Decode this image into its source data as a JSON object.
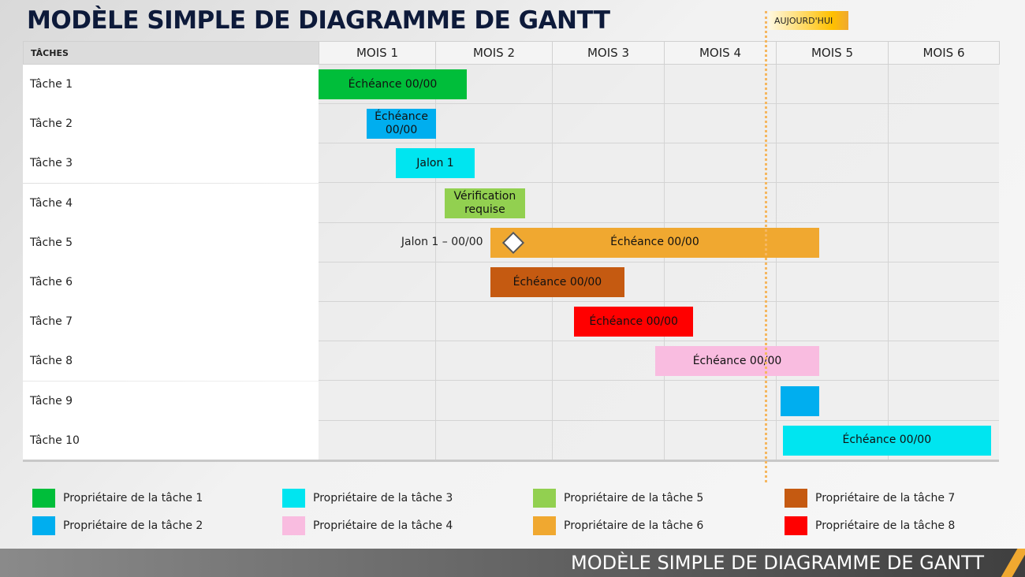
{
  "title": "MODÈLE SIMPLE DE DIAGRAMME DE GANTT",
  "footer_title": "MODÈLE SIMPLE DE DIAGRAMME DE GANTT",
  "chart_data": {
    "type": "gantt",
    "task_header": "TÂCHES",
    "months": [
      "MOIS 1",
      "MOIS 2",
      "MOIS 3",
      "MOIS 4",
      "MOIS 5",
      "MOIS 6"
    ],
    "today": {
      "label": "AUJOURD'HUI",
      "month": 3.91,
      "color": "#F5B760"
    },
    "tasks": [
      {
        "name": "Tâche 1",
        "start": 0,
        "end": 1.27,
        "label": "Échéance 00/00",
        "color": "#00BE3A"
      },
      {
        "name": "Tâche 2",
        "start": 0.41,
        "end": 1.01,
        "label": "Échéance 00/00",
        "color": "#00AEEF"
      },
      {
        "name": "Tâche 3",
        "start": 0.66,
        "end": 1.34,
        "label": "Jalon 1",
        "color": "#00E5F0"
      },
      {
        "name": "Tâche 4",
        "start": 1.08,
        "end": 1.77,
        "label": "Vérification requise",
        "color": "#92D050"
      },
      {
        "name": "Tâche 5",
        "start": 1.47,
        "end": 4.39,
        "label": "Échéance 00/00",
        "color": "#F0A830",
        "milestone": {
          "month": 1.67,
          "label": "Jalon 1 – 00/00"
        }
      },
      {
        "name": "Tâche 6",
        "start": 1.47,
        "end": 2.65,
        "label": "Échéance 00/00",
        "color": "#C55A11"
      },
      {
        "name": "Tâche 7",
        "start": 2.2,
        "end": 3.26,
        "label": "Échéance 00/00",
        "color": "#FF0000"
      },
      {
        "name": "Tâche 8",
        "start": 2.92,
        "end": 4.39,
        "label": "Échéance 00/00",
        "color": "#F9BCE0"
      },
      {
        "name": "Tâche 9",
        "start": 4.04,
        "end": 4.39,
        "label": "",
        "color": "#00AEEF"
      },
      {
        "name": "Tâche 10",
        "start": 4.06,
        "end": 5.93,
        "label": "Échéance 00/00",
        "color": "#00E5F0"
      }
    ],
    "legend": [
      {
        "label": "Propriétaire de la tâche 1",
        "color": "#00BE3A"
      },
      {
        "label": "Propriétaire de la tâche 2",
        "color": "#00AEEF"
      },
      {
        "label": "Propriétaire de la tâche 3",
        "color": "#00E5F0"
      },
      {
        "label": "Propriétaire de la tâche 4",
        "color": "#F9BCE0"
      },
      {
        "label": "Propriétaire de la tâche 5",
        "color": "#92D050"
      },
      {
        "label": "Propriétaire de la tâche 6",
        "color": "#F0A830"
      },
      {
        "label": "Propriétaire de la tâche 7",
        "color": "#C55A11"
      },
      {
        "label": "Propriétaire de la tâche 8",
        "color": "#FF0000"
      }
    ]
  }
}
